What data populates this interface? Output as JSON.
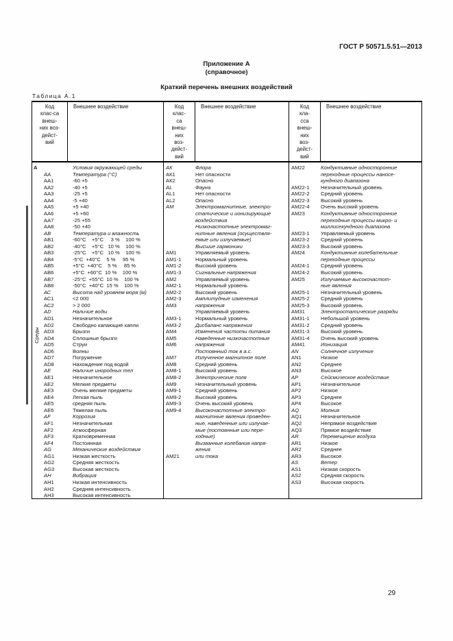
{
  "page": {
    "doc_number": "ГОСТ Р 50571.5.51—2013",
    "appendix": "Приложение А\n(справочное)",
    "main_title": "Краткий перечень внешних воздействий",
    "page_number": "29"
  },
  "table": {
    "label": "Таблица А.1",
    "side_label": "Среды",
    "header": {
      "code1": "Код\nклас-са\nвнеш-\nних воз-\nдейст-\nвий",
      "effect1": "Внешнее воздействие",
      "code2": "Код\nклас-\nса\nвнеш-\nних\nвоз-\nдейст-\nвий",
      "effect2": "Внешнее воздействие",
      "code3": "Код\nкла-\nсса\nвнеш-\nних\nвоз-\nдейст-\nвий",
      "effect3": "Внешнее воздействие"
    },
    "columns": [
      {
        "lines": [
          [
            "A",
            "Условия окружающей среды",
            "ib"
          ],
          [
            "АА",
            "Температура (°С)",
            "ij"
          ],
          [
            "АА1",
            "-60 +5",
            ""
          ],
          [
            "АА2",
            "-40 +5",
            ""
          ],
          [
            "АА3",
            "-25 +5",
            ""
          ],
          [
            "АА4",
            "-5 +40",
            ""
          ],
          [
            "АА5",
            "+5 +40",
            ""
          ],
          [
            "АА6",
            "+5 +60",
            ""
          ],
          [
            "АА7",
            "-25 +55",
            ""
          ],
          [
            "АА8",
            "-50 +40",
            ""
          ],
          [
            "АВ",
            "Температура и влажность",
            "ij"
          ],
          [
            "АВ1",
            "-60°С    +5°С     3 %    100 %",
            ""
          ],
          [
            "АВ2",
            "-40°С    +5°С   10 %    100 %",
            ""
          ],
          [
            "АВ3",
            "-25°С    +5°С   10 %    100 %",
            ""
          ],
          [
            "АВ4",
            "-5°С  +40°С    5 %     95 %",
            ""
          ],
          [
            "АВ5",
            "+5°С  +40°С    5 %     85 %",
            ""
          ],
          [
            "АВ6",
            "+5°С  +60°С  10 %    100 %",
            ""
          ],
          [
            "АВ7",
            "-25°С  +55°С  10 %    100 %",
            ""
          ],
          [
            "АВ8",
            "-50°С  +40°С  15 %    100 %",
            ""
          ],
          [
            "АС",
            "Высота над уровнем моря (м)",
            "ij"
          ],
          [
            "АС1",
            "<2 000",
            ""
          ],
          [
            "АС2",
            "> 2 000",
            ""
          ],
          [
            "AD",
            "Наличие воды",
            "ij"
          ],
          [
            "AD1",
            "Незначительное",
            ""
          ],
          [
            "AD2",
            "Свободно капающие капли",
            ""
          ],
          [
            "AD3",
            "Брызги",
            ""
          ],
          [
            "AD4",
            "Сплошные брызги",
            ""
          ],
          [
            "AD5",
            "Струи",
            ""
          ],
          [
            "AD6",
            "Волны",
            ""
          ],
          [
            "AD7",
            "Погружение",
            ""
          ],
          [
            "AD8",
            "Нахождение под водой",
            ""
          ],
          [
            "АЕ",
            "Наличие инородных тел",
            "ij"
          ],
          [
            "АЕ1",
            "Незначительное",
            ""
          ],
          [
            "АЕ2",
            "Мелкие предметы",
            ""
          ],
          [
            "АЕ3",
            "Очень мелкие предметы",
            ""
          ],
          [
            "АЕ4",
            "Легкая пыль",
            ""
          ],
          [
            "АЕ5",
            "средняя пыль",
            ""
          ],
          [
            "АЕ6",
            "Тяжелая пыль",
            ""
          ],
          [
            "AF",
            "Коррозия",
            "ij"
          ],
          [
            "AF1",
            "Незначительная",
            ""
          ],
          [
            "AF2",
            "Атмосферная",
            ""
          ],
          [
            "AF3",
            "Кратковременная",
            ""
          ],
          [
            "AF4",
            "Постоянная",
            ""
          ],
          [
            "AG",
            "Механические воздействия",
            "ij"
          ],
          [
            "AG1",
            "Низкая жесткость",
            ""
          ],
          [
            "AG2",
            "Средняя жесткость",
            ""
          ],
          [
            "AG3",
            "Высокая жесткость",
            ""
          ],
          [
            "АН",
            "Вибрация",
            "ij"
          ],
          [
            "АН1",
            "Низкая интенсивность",
            ""
          ],
          [
            "АН2",
            "Средняя интенсивность",
            ""
          ],
          [
            "АН3",
            "Высокая интенсивность",
            ""
          ]
        ]
      },
      {
        "lines": [
          [
            "АК",
            "Флора",
            "ij"
          ],
          [
            "АК1",
            "Нет опасности",
            ""
          ],
          [
            "АК2",
            "Опасно",
            ""
          ],
          [
            "AL",
            "Фауна",
            "ij"
          ],
          [
            "AL1",
            "Нет опасности",
            ""
          ],
          [
            "AL2",
            "Опасно",
            ""
          ],
          [
            "AM",
            "Электромагнитные, электро-",
            "ij"
          ],
          [
            "",
            "статические и ионизирующие",
            "i"
          ],
          [
            "",
            "воздействия",
            "i"
          ],
          [
            "",
            "Низкочастотные электромаг-",
            "i"
          ],
          [
            "",
            "нитные явления (осуществля-",
            "i"
          ],
          [
            "",
            "емые или излучаемые)",
            "i"
          ],
          [
            "",
            "Высшие гармоники",
            "i"
          ],
          [
            "AM1",
            "Управляемый уровень",
            ""
          ],
          [
            "AM1-1",
            "Нормальный уровень",
            ""
          ],
          [
            "AM1-2",
            "Высокий уровень",
            ""
          ],
          [
            "AM1-3",
            "Сигнальные напряжения",
            "i"
          ],
          [
            "AM2",
            "Управляемый уровень",
            ""
          ],
          [
            "AM2-1",
            "Нормальный уровень",
            ""
          ],
          [
            "AM2-2",
            "Высокий уровень",
            ""
          ],
          [
            "AM2-3",
            "Амплитудные изменения",
            "i"
          ],
          [
            "AM3",
            "напряжения",
            "i"
          ],
          [
            "",
            "Управляемый уровень",
            ""
          ],
          [
            "AM3-1",
            "Нормальный уровень",
            ""
          ],
          [
            "AM3-2",
            "Дисбаланс напряжения",
            "i"
          ],
          [
            "AM4",
            "Изменения частоты питания",
            "i"
          ],
          [
            "AM5",
            "Наведенные низкочастотные",
            "i"
          ],
          [
            "AM6",
            "напряжения",
            "i"
          ],
          [
            "",
            "Постоянный ток в а.с.",
            "i"
          ],
          [
            "AM7",
            "Излученное магнитное поле",
            "i"
          ],
          [
            "AM8",
            "Средний уровень",
            ""
          ],
          [
            "AM8-1",
            "Высокий уровень",
            ""
          ],
          [
            "AM8-2",
            "Электрические поля",
            "i"
          ],
          [
            "AM9",
            "Незначительный уровень",
            ""
          ],
          [
            "AM9-1",
            "Средний уровень",
            ""
          ],
          [
            "AM9-2",
            "Высокий уровень",
            ""
          ],
          [
            "AM9-3",
            "Очень высокий уровень",
            ""
          ],
          [
            "AM9-4",
            "Высокочастотные электро-",
            "i"
          ],
          [
            "",
            "магнитные явления проведен-",
            "i"
          ],
          [
            "",
            "ные, наведенные или излучае-",
            "i"
          ],
          [
            "",
            "мые (постоянные или пере-",
            "i"
          ],
          [
            "",
            "ходные)",
            "i"
          ],
          [
            "",
            "Вызванные колебания напря-",
            "i"
          ],
          [
            "",
            "жения",
            "i"
          ],
          [
            "AM21",
            "или тока",
            "i"
          ]
        ]
      },
      {
        "lines": [
          [
            "AM22",
            "Кондуктивные односторонние",
            "i"
          ],
          [
            "",
            "переходные процессы наносе-",
            "i"
          ],
          [
            "",
            "кундного диапазона",
            "i"
          ],
          [
            "AM22-1",
            "Незначительный уровень",
            ""
          ],
          [
            "AM22-2",
            "Средний уровень",
            ""
          ],
          [
            "AM22-3",
            "Высокий уровень",
            ""
          ],
          [
            "AM22-4",
            "Очень высокий уровень",
            ""
          ],
          [
            "AM23",
            "Кондуктивные односторонние",
            "i"
          ],
          [
            "",
            "переходные процессы микро- и",
            "i"
          ],
          [
            "",
            "миллисекундного диапазона",
            "i"
          ],
          [
            "AM23-1",
            "Управляемый уровень",
            ""
          ],
          [
            "AM23-2",
            "Средний уровень",
            ""
          ],
          [
            "AM23-3",
            "Высокий уровень",
            ""
          ],
          [
            "AM24",
            "Кондуктивные колебательные",
            "i"
          ],
          [
            "",
            "переходные процессы",
            "i"
          ],
          [
            "AM24-1",
            "Средний уровень",
            ""
          ],
          [
            "AM24-2",
            "Высокий уровень",
            ""
          ],
          [
            "AM25",
            "Излучаемые высокочастот-",
            "i"
          ],
          [
            "",
            "ные явления",
            "i"
          ],
          [
            "AM25-1",
            "Незначительный уровень",
            ""
          ],
          [
            "AM25-2",
            "Средний уровень",
            ""
          ],
          [
            "AM25-3",
            "Высокий уровень",
            ""
          ],
          [
            "AM31",
            "Электростатические разряды",
            "i"
          ],
          [
            "AM31-1",
            "Небольшой уровень",
            ""
          ],
          [
            "AM31-2",
            "Средний уровень",
            ""
          ],
          [
            "AM31-3",
            "Высокий уровень",
            ""
          ],
          [
            "AM31-4",
            "Очень высокий уровень",
            ""
          ],
          [
            "AM41",
            "Ионизация",
            "i"
          ],
          [
            "AN",
            "Солнечное излучение",
            "ij"
          ],
          [
            "AN1",
            "Низкое",
            ""
          ],
          [
            "AN2",
            "Среднее",
            ""
          ],
          [
            "AN3",
            "Высокое",
            ""
          ],
          [
            "АР",
            "Сейсмическое воздействие",
            "ij"
          ],
          [
            "АР1",
            "Незначительное",
            ""
          ],
          [
            "АР2",
            "Низкое",
            ""
          ],
          [
            "АР3",
            "Среднее",
            ""
          ],
          [
            "АР4",
            "Высокое",
            ""
          ],
          [
            "AQ",
            "Молния",
            "ij"
          ],
          [
            "AQ1",
            "Незначительное",
            ""
          ],
          [
            "AQ2",
            "Непрямое воздействие",
            ""
          ],
          [
            "AQ3",
            "Прямое воздействие",
            ""
          ],
          [
            "AR",
            "Перемещение воздуха",
            "ij"
          ],
          [
            "AR1",
            "Низкое",
            ""
          ],
          [
            "AR2",
            "Среднее",
            ""
          ],
          [
            "AR3",
            "Высокое",
            ""
          ],
          [
            "AS",
            "Ветер",
            "ij"
          ],
          [
            "AS1",
            "Низкая  скорость",
            ""
          ],
          [
            "AS2",
            "Средняя скорость",
            ""
          ],
          [
            "AS3",
            "Высокая скорость",
            ""
          ]
        ]
      }
    ]
  }
}
